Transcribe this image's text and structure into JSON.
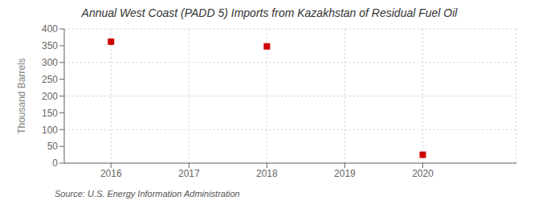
{
  "chart_data": {
    "type": "scatter",
    "title": "Annual West Coast (PADD 5) Imports from Kazakhstan of Residual Fuel Oil",
    "ylabel": "Thousand Barrels",
    "source": "Source: U.S. Energy Information Administration",
    "x": [
      2016,
      2018,
      2020
    ],
    "values": [
      362,
      348,
      25
    ],
    "color": "#cc0000",
    "marker": "square",
    "xlim": [
      2015.4,
      2021.2
    ],
    "ylim": [
      0,
      400
    ],
    "xticks": [
      2016,
      2017,
      2018,
      2019,
      2020
    ],
    "yticks": [
      0,
      50,
      100,
      150,
      200,
      250,
      300,
      350,
      400
    ],
    "grid": true
  }
}
